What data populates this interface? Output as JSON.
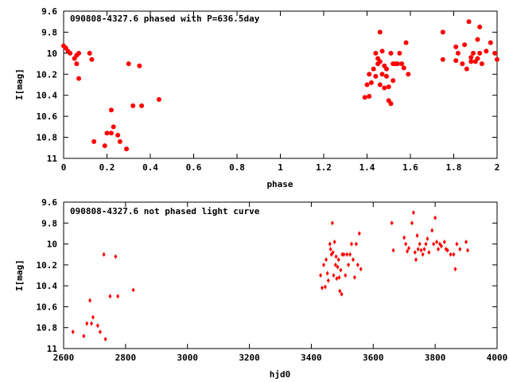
{
  "chart_data": [
    {
      "type": "scatter",
      "title": "090808-4327.6 phased with P=636.5day",
      "xlabel": "phase",
      "ylabel": "I[mag]",
      "xlim": [
        0,
        2
      ],
      "ylim": [
        9.6,
        11
      ],
      "y_inverted": true,
      "xticks": [
        "0",
        "0.2",
        "0.4",
        "0.6",
        "0.8",
        "1",
        "1.2",
        "1.4",
        "1.6",
        "1.8",
        "2"
      ],
      "xtick_values": [
        0,
        0.2,
        0.4,
        0.6,
        0.8,
        1,
        1.2,
        1.4,
        1.6,
        1.8,
        2
      ],
      "yticks": [
        "9.6",
        "9.8",
        "10",
        "10.2",
        "10.4",
        "10.6",
        "10.8",
        "11"
      ],
      "ytick_values": [
        9.6,
        9.8,
        10,
        10.2,
        10.4,
        10.6,
        10.8,
        11
      ],
      "marker_color": "#ff0000",
      "marker": "filled-circle",
      "points": [
        [
          0.0,
          9.93
        ],
        [
          0.01,
          9.95
        ],
        [
          0.02,
          9.98
        ],
        [
          0.03,
          10.0
        ],
        [
          0.05,
          10.05
        ],
        [
          0.06,
          10.02
        ],
        [
          0.06,
          10.1
        ],
        [
          0.07,
          10.0
        ],
        [
          0.07,
          10.24
        ],
        [
          0.12,
          10.0
        ],
        [
          0.13,
          10.06
        ],
        [
          0.14,
          10.84
        ],
        [
          0.19,
          10.88
        ],
        [
          0.2,
          10.76
        ],
        [
          0.22,
          10.54
        ],
        [
          0.22,
          10.76
        ],
        [
          0.23,
          10.7
        ],
        [
          0.25,
          10.78
        ],
        [
          0.26,
          10.84
        ],
        [
          0.3,
          10.1
        ],
        [
          0.29,
          10.91
        ],
        [
          0.32,
          10.5
        ],
        [
          0.35,
          10.12
        ],
        [
          0.36,
          10.5
        ],
        [
          0.44,
          10.44
        ],
        [
          1.39,
          10.42
        ],
        [
          1.4,
          10.3
        ],
        [
          1.41,
          10.41
        ],
        [
          1.41,
          10.2
        ],
        [
          1.42,
          10.28
        ],
        [
          1.43,
          10.15
        ],
        [
          1.44,
          10.22
        ],
        [
          1.44,
          10.0
        ],
        [
          1.45,
          10.05
        ],
        [
          1.45,
          10.1
        ],
        [
          1.46,
          9.8
        ],
        [
          1.46,
          10.08
        ],
        [
          1.46,
          10.3
        ],
        [
          1.47,
          9.98
        ],
        [
          1.47,
          10.2
        ],
        [
          1.48,
          10.12
        ],
        [
          1.48,
          10.33
        ],
        [
          1.49,
          10.22
        ],
        [
          1.49,
          10.15
        ],
        [
          1.5,
          10.45
        ],
        [
          1.5,
          10.32
        ],
        [
          1.51,
          10.0
        ],
        [
          1.51,
          10.48
        ],
        [
          1.52,
          10.26
        ],
        [
          1.52,
          10.1
        ],
        [
          1.53,
          10.1
        ],
        [
          1.54,
          10.1
        ],
        [
          1.55,
          10.0
        ],
        [
          1.56,
          10.1
        ],
        [
          1.57,
          10.14
        ],
        [
          1.58,
          9.9
        ],
        [
          1.59,
          10.2
        ],
        [
          1.75,
          9.8
        ],
        [
          1.75,
          10.06
        ],
        [
          1.81,
          9.94
        ],
        [
          1.81,
          10.07
        ],
        [
          1.82,
          10.0
        ],
        [
          1.84,
          10.1
        ],
        [
          1.85,
          9.92
        ],
        [
          1.86,
          10.15
        ],
        [
          1.87,
          9.7
        ],
        [
          1.88,
          10.08
        ],
        [
          1.88,
          10.04
        ],
        [
          1.89,
          10.0
        ],
        [
          1.9,
          10.08
        ],
        [
          1.91,
          10.05
        ],
        [
          1.91,
          9.87
        ],
        [
          1.92,
          10.0
        ],
        [
          1.92,
          9.75
        ],
        [
          1.93,
          10.1
        ],
        [
          1.95,
          9.98
        ],
        [
          1.97,
          9.9
        ],
        [
          1.99,
          10.0
        ],
        [
          2.0,
          10.06
        ]
      ]
    },
    {
      "type": "scatter",
      "title": "090808-4327.6 not phased light curve",
      "xlabel": "hjd0",
      "ylabel": "I[mag]",
      "xlim": [
        2600,
        4000
      ],
      "ylim": [
        9.6,
        11
      ],
      "y_inverted": true,
      "xticks": [
        "2600",
        "2800",
        "3000",
        "3200",
        "3400",
        "3600",
        "3800",
        "4000"
      ],
      "xtick_values": [
        2600,
        2800,
        3000,
        3200,
        3400,
        3600,
        3800,
        4000
      ],
      "yticks": [
        "9.6",
        "9.8",
        "10",
        "10.2",
        "10.4",
        "10.6",
        "10.8",
        "11"
      ],
      "ytick_values": [
        9.6,
        9.8,
        10,
        10.2,
        10.4,
        10.6,
        10.8,
        11
      ],
      "marker_color": "#ff0000",
      "marker": "diamond",
      "points": [
        [
          2630,
          10.84
        ],
        [
          2665,
          10.88
        ],
        [
          2675,
          10.76
        ],
        [
          2685,
          10.54
        ],
        [
          2690,
          10.76
        ],
        [
          2695,
          10.7
        ],
        [
          2710,
          10.78
        ],
        [
          2718,
          10.84
        ],
        [
          2730,
          10.1
        ],
        [
          2735,
          10.91
        ],
        [
          2750,
          10.5
        ],
        [
          2768,
          10.12
        ],
        [
          2775,
          10.5
        ],
        [
          2825,
          10.44
        ],
        [
          3430,
          10.3
        ],
        [
          3435,
          10.42
        ],
        [
          3440,
          10.2
        ],
        [
          3445,
          10.41
        ],
        [
          3448,
          10.15
        ],
        [
          3452,
          10.28
        ],
        [
          3455,
          10.35
        ],
        [
          3460,
          10.0
        ],
        [
          3462,
          10.05
        ],
        [
          3465,
          10.1
        ],
        [
          3468,
          9.8
        ],
        [
          3470,
          10.08
        ],
        [
          3472,
          10.3
        ],
        [
          3475,
          9.98
        ],
        [
          3478,
          10.2
        ],
        [
          3480,
          10.12
        ],
        [
          3482,
          10.33
        ],
        [
          3485,
          10.22
        ],
        [
          3488,
          10.15
        ],
        [
          3490,
          10.32
        ],
        [
          3492,
          10.45
        ],
        [
          3495,
          10.25
        ],
        [
          3498,
          10.48
        ],
        [
          3500,
          10.1
        ],
        [
          3505,
          10.1
        ],
        [
          3510,
          10.3
        ],
        [
          3515,
          10.1
        ],
        [
          3520,
          10.2
        ],
        [
          3525,
          10.1
        ],
        [
          3530,
          10.0
        ],
        [
          3535,
          10.15
        ],
        [
          3540,
          10.32
        ],
        [
          3545,
          10.0
        ],
        [
          3550,
          10.2
        ],
        [
          3555,
          9.9
        ],
        [
          3560,
          10.24
        ],
        [
          3660,
          9.8
        ],
        [
          3665,
          10.06
        ],
        [
          3700,
          9.94
        ],
        [
          3705,
          10.0
        ],
        [
          3710,
          10.07
        ],
        [
          3715,
          10.04
        ],
        [
          3725,
          9.8
        ],
        [
          3730,
          9.7
        ],
        [
          3735,
          10.08
        ],
        [
          3738,
          10.15
        ],
        [
          3742,
          9.92
        ],
        [
          3745,
          10.05
        ],
        [
          3750,
          10.0
        ],
        [
          3755,
          10.06
        ],
        [
          3760,
          10.1
        ],
        [
          3765,
          10.05
        ],
        [
          3770,
          10.0
        ],
        [
          3775,
          9.95
        ],
        [
          3780,
          10.08
        ],
        [
          3790,
          9.87
        ],
        [
          3795,
          10.0
        ],
        [
          3800,
          9.75
        ],
        [
          3805,
          9.98
        ],
        [
          3810,
          10.05
        ],
        [
          3815,
          10.0
        ],
        [
          3820,
          10.02
        ],
        [
          3830,
          9.98
        ],
        [
          3835,
          10.05
        ],
        [
          3840,
          10.06
        ],
        [
          3850,
          10.1
        ],
        [
          3860,
          10.1
        ],
        [
          3865,
          10.24
        ],
        [
          3870,
          10.0
        ],
        [
          3880,
          10.05
        ],
        [
          3900,
          9.98
        ],
        [
          3905,
          10.06
        ]
      ]
    }
  ]
}
